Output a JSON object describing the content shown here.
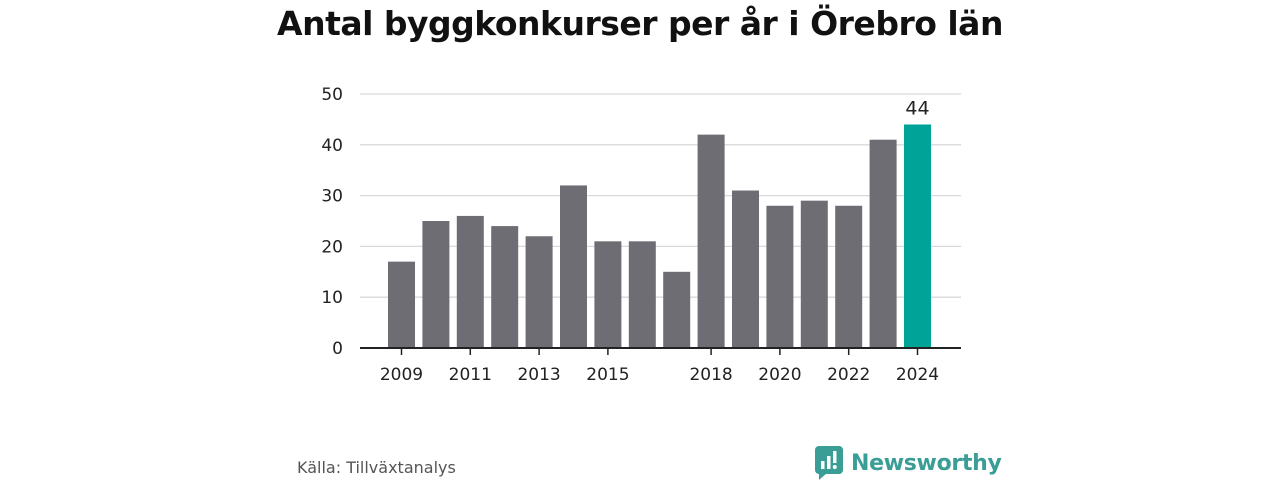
{
  "header": {
    "title": "Antal byggkonkurser per år i Örebro län"
  },
  "chart_data": {
    "type": "bar",
    "title": "Antal byggkonkurser per år i Örebro län",
    "xlabel": "",
    "ylabel": "",
    "categories": [
      "2009",
      "2010",
      "2011",
      "2012",
      "2013",
      "2014",
      "2015",
      "2016",
      "2017",
      "2018",
      "2019",
      "2020",
      "2021",
      "2022",
      "2023",
      "2024"
    ],
    "x_tick_labels": [
      "2009",
      "",
      "2011",
      "",
      "2013",
      "",
      "2015",
      "",
      "",
      "2018",
      "",
      "2020",
      "",
      "2022",
      "",
      "2024"
    ],
    "values": [
      17,
      25,
      26,
      24,
      22,
      32,
      21,
      21,
      15,
      42,
      31,
      28,
      29,
      28,
      41,
      44
    ],
    "ylim": [
      0,
      50
    ],
    "y_ticks": [
      0,
      10,
      20,
      30,
      40,
      50
    ],
    "grid": true,
    "highlight_index": 15,
    "annotations": [
      {
        "category": "2024",
        "text": "44"
      }
    ],
    "colors": {
      "bar": "#6e6d74",
      "highlight": "#00a398",
      "grid": "#d9d9d9",
      "axis": "#222222"
    }
  },
  "footer": {
    "source": "Källa: Tillväxtanalys",
    "brand": "Newsworthy",
    "brand_color": "#3a9e96",
    "brand_icon": "bar-chart-speech-bubble-icon"
  }
}
